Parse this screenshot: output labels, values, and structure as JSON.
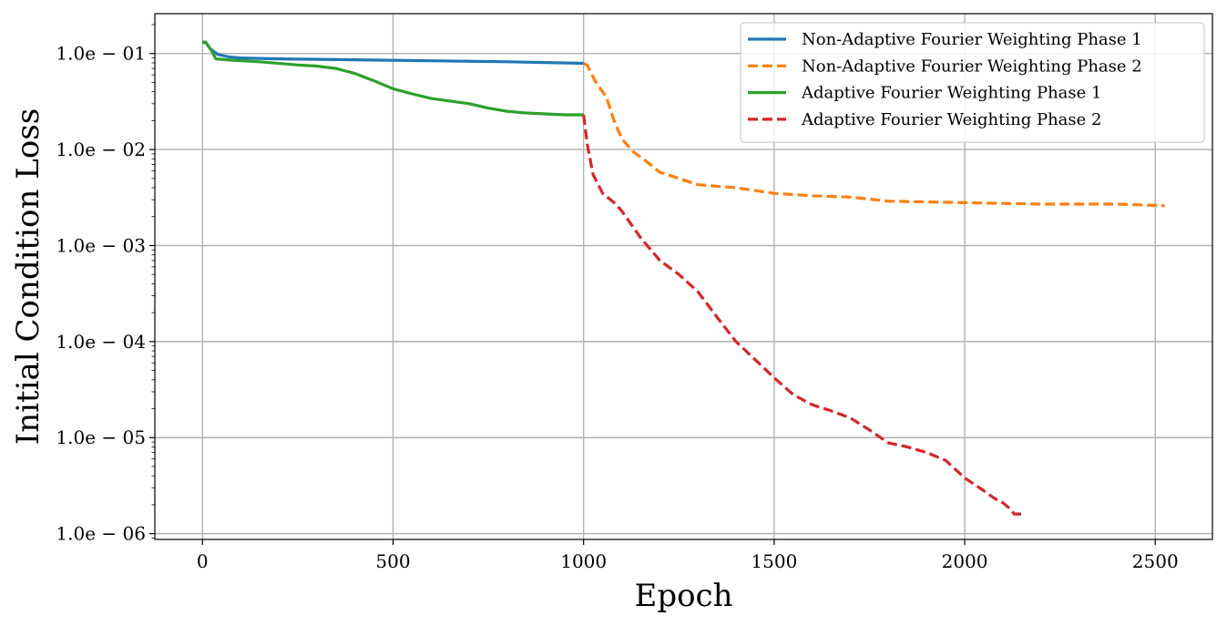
{
  "chart_data": {
    "type": "line",
    "title": "",
    "xlabel": "Epoch",
    "ylabel": "Initial Condition Loss",
    "yscale": "log",
    "xlim": [
      -125,
      2650
    ],
    "ylim": [
      8.7e-07,
      0.26
    ],
    "xticks": [
      0,
      500,
      1000,
      1500,
      2000,
      2500
    ],
    "xtick_labels": [
      "0",
      "500",
      "1000",
      "1500",
      "2000",
      "2500"
    ],
    "yticks": [
      0.1,
      0.01,
      0.001,
      0.0001,
      1e-05,
      1e-06
    ],
    "ytick_labels": [
      "1.0e − 01",
      "1.0e − 02",
      "1.0e − 03",
      "1.0e − 04",
      "1.0e − 05",
      "1.0e − 06"
    ],
    "grid": true,
    "legend_position": "top-right",
    "series": [
      {
        "name": "Non-Adaptive Fourier Weighting Phase 1",
        "color": "#1f77b4",
        "style": "solid",
        "x": [
          0,
          10,
          20,
          40,
          70,
          100,
          200,
          400,
          600,
          800,
          1000
        ],
        "y": [
          0.132,
          0.128,
          0.112,
          0.098,
          0.092,
          0.09,
          0.088,
          0.086,
          0.084,
          0.082,
          0.079
        ]
      },
      {
        "name": "Non-Adaptive Fourier Weighting Phase 2",
        "color": "#ff7f0e",
        "style": "dashed",
        "x": [
          1000,
          1010,
          1030,
          1060,
          1080,
          1100,
          1130,
          1160,
          1200,
          1250,
          1300,
          1400,
          1500,
          1600,
          1700,
          1800,
          2000,
          2200,
          2400,
          2525
        ],
        "y": [
          0.079,
          0.075,
          0.052,
          0.035,
          0.02,
          0.013,
          0.0095,
          0.0078,
          0.0058,
          0.005,
          0.0043,
          0.004,
          0.0035,
          0.0033,
          0.0032,
          0.0029,
          0.0028,
          0.0027,
          0.0027,
          0.0026
        ]
      },
      {
        "name": "Adaptive Fourier Weighting Phase 1",
        "color": "#2ca02c",
        "style": "solid",
        "x": [
          0,
          8,
          15,
          25,
          35,
          50,
          80,
          150,
          250,
          300,
          350,
          400,
          450,
          500,
          550,
          600,
          650,
          700,
          750,
          800,
          850,
          900,
          950,
          1000
        ],
        "y": [
          0.13,
          0.132,
          0.12,
          0.105,
          0.088,
          0.087,
          0.085,
          0.082,
          0.076,
          0.074,
          0.07,
          0.062,
          0.052,
          0.043,
          0.038,
          0.034,
          0.032,
          0.03,
          0.027,
          0.025,
          0.024,
          0.0235,
          0.023,
          0.023
        ]
      },
      {
        "name": "Adaptive Fourier Weighting Phase 2",
        "color": "#d62728",
        "style": "dashed",
        "x": [
          1000,
          1010,
          1025,
          1050,
          1080,
          1100,
          1150,
          1200,
          1250,
          1300,
          1350,
          1400,
          1450,
          1500,
          1550,
          1600,
          1650,
          1700,
          1750,
          1800,
          1850,
          1900,
          1950,
          2000,
          2050,
          2080,
          2100,
          2120,
          2130,
          2150
        ],
        "y": [
          0.023,
          0.011,
          0.0055,
          0.0035,
          0.0028,
          0.0023,
          0.0012,
          0.0007,
          0.0005,
          0.00033,
          0.00018,
          0.0001,
          6.5e-05,
          4.2e-05,
          2.8e-05,
          2.2e-05,
          1.9e-05,
          1.6e-05,
          1.2e-05,
          8.8e-06,
          8e-06,
          7e-06,
          5.8e-06,
          3.8e-06,
          2.8e-06,
          2.3e-06,
          2.1e-06,
          1.8e-06,
          1.6e-06,
          1.6e-06
        ]
      }
    ]
  }
}
